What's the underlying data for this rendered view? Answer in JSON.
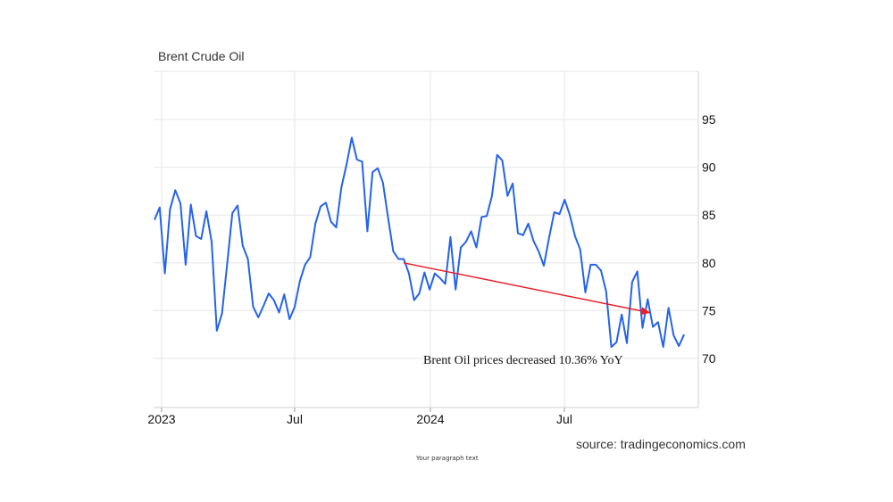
{
  "chart_data": {
    "type": "line",
    "title": "Brent Crude Oil",
    "xlabel": "",
    "ylabel": "",
    "ylim": [
      65,
      100
    ],
    "y_ticks": [
      70,
      75,
      80,
      85,
      90,
      95
    ],
    "x_ticks": [
      "2023",
      "Jul",
      "2024",
      "Jul"
    ],
    "grid": true,
    "y_axis_side": "right",
    "colors": {
      "line": "#2563eb",
      "trend": "#e8202a"
    },
    "series": [
      {
        "values": [
          84.5,
          85.8,
          78.9,
          85.6,
          87.6,
          86.2,
          79.8,
          86.1,
          82.8,
          82.5,
          85.4,
          82.2,
          72.9,
          74.7,
          79.9,
          85.2,
          86.0,
          81.8,
          80.4,
          75.4,
          74.3,
          75.5,
          76.8,
          76.1,
          74.8,
          76.7,
          74.1,
          75.4,
          78.1,
          79.8,
          80.6,
          84.1,
          85.9,
          86.3,
          84.3,
          83.7,
          87.9,
          90.3,
          93.1,
          90.8,
          90.6,
          83.3,
          89.5,
          89.9,
          88.4,
          84.7,
          81.2,
          80.4,
          80.4,
          78.9,
          76.1,
          76.8,
          79.0,
          77.2,
          78.9,
          78.4,
          77.8,
          82.7,
          77.2,
          81.6,
          82.2,
          83.3,
          81.6,
          84.8,
          84.9,
          87.0,
          91.3,
          90.7,
          87.0,
          88.3,
          83.1,
          82.9,
          84.1,
          82.3,
          81.2,
          79.7,
          82.6,
          85.3,
          85.1,
          86.6,
          85.0,
          82.8,
          81.4,
          76.9,
          79.8,
          79.8,
          79.2,
          77.0,
          71.2,
          71.7,
          74.6,
          71.6,
          78.0,
          79.1,
          73.2,
          76.2,
          73.3,
          73.8,
          71.2,
          75.3,
          72.4,
          71.3,
          72.5
        ]
      }
    ],
    "trend_arrow": {
      "from": {
        "x": "2023-12",
        "y": 80.0
      },
      "to": {
        "x": "2024-11",
        "y": 74.8
      }
    }
  },
  "annotation": "Brent Oil prices decreased 10.36% YoY",
  "source": "source: tradingeconomics.com",
  "paragraph": "Your paragraph text"
}
